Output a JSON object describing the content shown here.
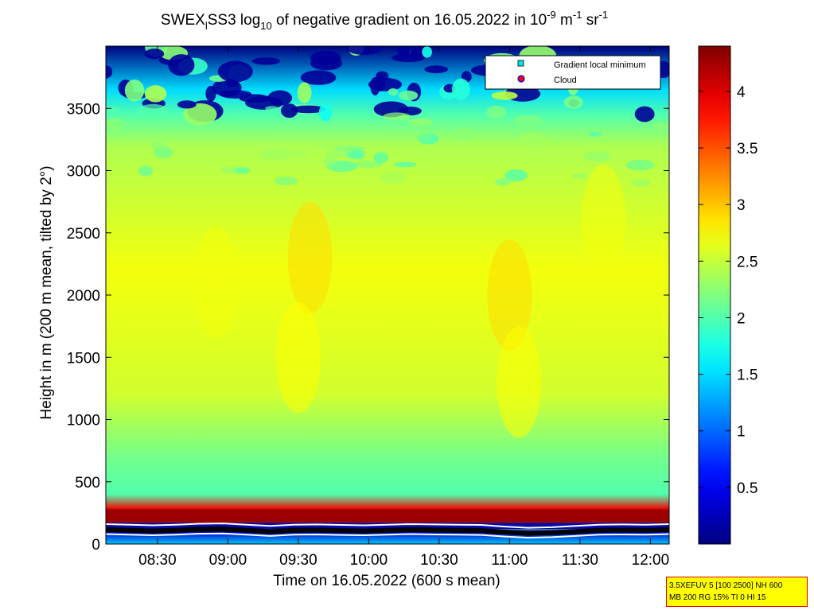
{
  "title": {
    "part1": "SWEX",
    "sub1": "l",
    "part2": "SS3 log",
    "sub2": "10",
    "part3": " of negative gradient on 16.05.2022 in 10",
    "sup1": "-9",
    "part4": " m",
    "sup2": "-1",
    "part5": " sr",
    "sup3": "-1"
  },
  "info_box": {
    "line1": "3.5XEFUV 5 [100 2500] NH 600",
    "line2": "MB 200 RG 15% TI 0 HI 15"
  },
  "chart_data": {
    "type": "heatmap",
    "xlabel": "Time on 16.05.2022 (600 s mean)",
    "ylabel": "Height in m (200 m mean, tilted by 2°)",
    "x_tick_labels": [
      "08:30",
      "09:00",
      "09:30",
      "10:00",
      "10:30",
      "11:00",
      "11:30",
      "12:00"
    ],
    "x_tick_minutes": [
      510,
      540,
      570,
      600,
      630,
      660,
      690,
      720
    ],
    "xlim_minutes": [
      488,
      728
    ],
    "y_ticks": [
      0,
      500,
      1000,
      1500,
      2000,
      2500,
      3000,
      3500
    ],
    "ylim": [
      0,
      4000
    ],
    "colorbar": {
      "ticks": [
        0.5,
        1,
        1.5,
        2,
        2.5,
        3,
        3.5,
        4
      ],
      "tick_labels": [
        "0.5",
        "1",
        "1.5",
        "2",
        "2.5",
        "3",
        "3.5",
        "4"
      ],
      "clim": [
        0,
        4.4
      ],
      "colormap": "jet"
    },
    "legend": {
      "position": "top-right",
      "entries": [
        {
          "label": "Gradient local minimum",
          "marker": "square",
          "color": "#00e5e5"
        },
        {
          "label": "Cloud",
          "marker": "circle",
          "color": "#ff0000"
        }
      ]
    },
    "value_profile": {
      "heights_m": [
        0,
        100,
        130,
        200,
        280,
        400,
        700,
        1200,
        2200,
        3200,
        3450,
        3650,
        4000
      ],
      "values": [
        1.4,
        0.3,
        2.2,
        4.2,
        3.9,
        2.0,
        2.15,
        2.55,
        2.7,
        2.4,
        2.0,
        1.5,
        0.0
      ]
    },
    "boundary_layer_height_m": [
      115,
      110,
      105,
      110,
      118,
      120,
      110,
      100,
      110,
      112,
      108,
      105,
      110,
      115,
      112,
      110,
      108,
      95,
      85,
      90,
      100,
      110,
      112,
      110,
      115
    ],
    "boundary_layer_times_min": [
      488,
      498,
      508,
      518,
      528,
      538,
      548,
      558,
      568,
      578,
      588,
      598,
      608,
      618,
      628,
      638,
      648,
      658,
      668,
      678,
      688,
      698,
      708,
      718,
      728
    ]
  }
}
